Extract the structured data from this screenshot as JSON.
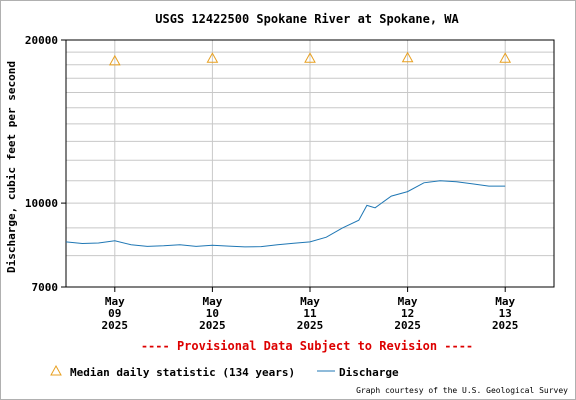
{
  "chart_data": {
    "type": "line",
    "title": "USGS 12422500 Spokane River at Spokane, WA",
    "ylabel": "Discharge, cubic feet per second",
    "y_scale": "log",
    "ylim": [
      7000,
      20000
    ],
    "y_ticks": [
      "20000",
      "10000",
      "7000"
    ],
    "x_ticks": [
      {
        "month": "May",
        "day": "09",
        "year": "2025"
      },
      {
        "month": "May",
        "day": "10",
        "year": "2025"
      },
      {
        "month": "May",
        "day": "11",
        "year": "2025"
      },
      {
        "month": "May",
        "day": "12",
        "year": "2025"
      },
      {
        "month": "May",
        "day": "13",
        "year": "2025"
      }
    ],
    "xlim": [
      "2025-05-08T12:00",
      "2025-05-13T12:00"
    ],
    "grid": true,
    "legend_position": "bottom",
    "series": [
      {
        "name": "Discharge",
        "color": "#1f77b4",
        "points": [
          [
            "2025-05-08T12:00",
            8480
          ],
          [
            "2025-05-08T16:00",
            8420
          ],
          [
            "2025-05-08T20:00",
            8440
          ],
          [
            "2025-05-09T00:00",
            8520
          ],
          [
            "2025-05-09T04:00",
            8380
          ],
          [
            "2025-05-09T08:00",
            8320
          ],
          [
            "2025-05-09T12:00",
            8340
          ],
          [
            "2025-05-09T16:00",
            8380
          ],
          [
            "2025-05-09T20:00",
            8320
          ],
          [
            "2025-05-10T00:00",
            8360
          ],
          [
            "2025-05-10T04:00",
            8330
          ],
          [
            "2025-05-10T08:00",
            8300
          ],
          [
            "2025-05-10T12:00",
            8310
          ],
          [
            "2025-05-10T16:00",
            8380
          ],
          [
            "2025-05-10T20:00",
            8430
          ],
          [
            "2025-05-11T00:00",
            8480
          ],
          [
            "2025-05-11T04:00",
            8650
          ],
          [
            "2025-05-11T08:00",
            9000
          ],
          [
            "2025-05-11T12:00",
            9300
          ],
          [
            "2025-05-11T14:00",
            9900
          ],
          [
            "2025-05-11T16:00",
            9800
          ],
          [
            "2025-05-11T20:00",
            10300
          ],
          [
            "2025-05-12T00:00",
            10500
          ],
          [
            "2025-05-12T04:00",
            10900
          ],
          [
            "2025-05-12T08:00",
            11000
          ],
          [
            "2025-05-12T12:00",
            10950
          ],
          [
            "2025-05-12T16:00",
            10850
          ],
          [
            "2025-05-12T20:00",
            10750
          ],
          [
            "2025-05-13T00:00",
            10750
          ]
        ]
      },
      {
        "name": "Median daily statistic (134 years)",
        "marker": "triangle",
        "color": "#e8a020",
        "points": [
          [
            "2025-05-09T00:00",
            18300
          ],
          [
            "2025-05-10T00:00",
            18500
          ],
          [
            "2025-05-11T00:00",
            18500
          ],
          [
            "2025-05-12T00:00",
            18550
          ],
          [
            "2025-05-13T00:00",
            18500
          ]
        ]
      }
    ],
    "notice": "---- Provisional Data Subject to Revision ----",
    "credit": "Graph courtesy of the U.S. Geological Survey"
  }
}
